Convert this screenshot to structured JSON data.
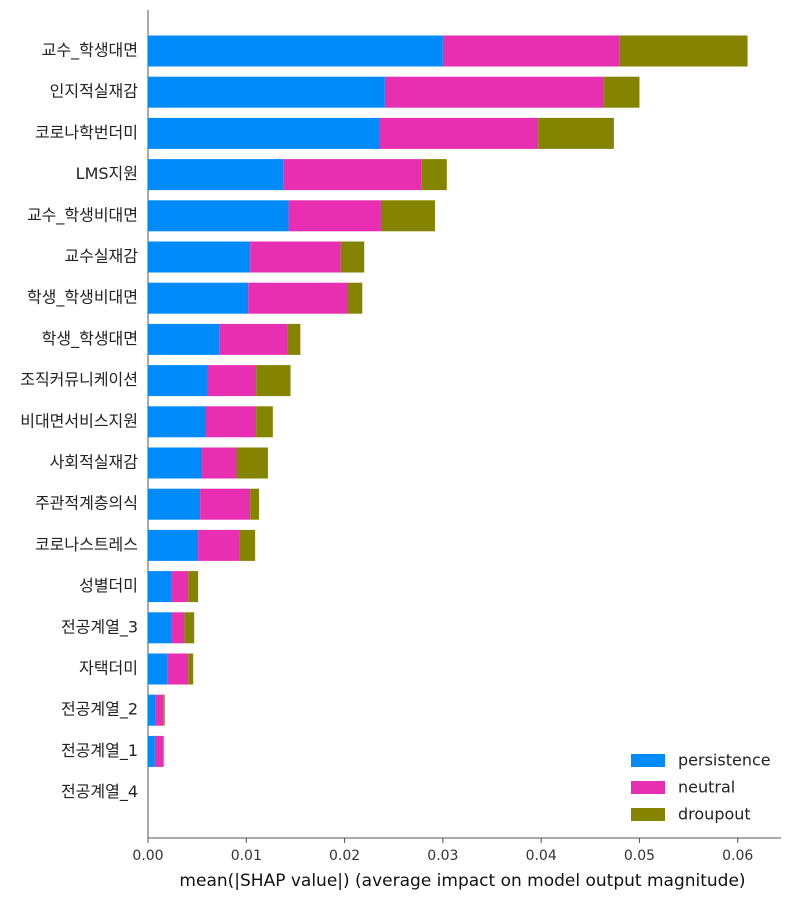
{
  "chart_data": {
    "type": "bar",
    "orientation": "horizontal",
    "stacked": true,
    "categories": [
      "교수_학생대면",
      "인지적실재감",
      "코로나학번더미",
      "LMS지원",
      "교수_학생비대면",
      "교수실재감",
      "학생_학생비대면",
      "학생_학생대면",
      "조직커뮤니케이션",
      "비대면서비스지원",
      "사회적실재감",
      "주관적계층의식",
      "코로나스트레스",
      "성별더미",
      "전공계열_3",
      "자택더미",
      "전공계열_2",
      "전공계열_1",
      "전공계열_4"
    ],
    "series": [
      {
        "name": "persistence",
        "color": "#008bfb",
        "values": [
          0.03,
          0.0241,
          0.0236,
          0.0138,
          0.0143,
          0.0104,
          0.0102,
          0.0073,
          0.006,
          0.0059,
          0.0055,
          0.0053,
          0.0051,
          0.0024,
          0.0024,
          0.002,
          0.0008,
          0.0007,
          0.0
        ]
      },
      {
        "name": "neutral",
        "color": "#e92fb1",
        "values": [
          0.018,
          0.0222,
          0.0161,
          0.014,
          0.0094,
          0.0092,
          0.0101,
          0.0069,
          0.005,
          0.0051,
          0.0035,
          0.0051,
          0.0042,
          0.0017,
          0.0013,
          0.0021,
          0.0008,
          0.0009,
          0.0
        ]
      },
      {
        "name": "droupout",
        "color": "#848400",
        "values": [
          0.013,
          0.0037,
          0.0077,
          0.0026,
          0.0055,
          0.0024,
          0.0015,
          0.0013,
          0.0035,
          0.0017,
          0.0032,
          0.0009,
          0.0016,
          0.001,
          0.001,
          0.0005,
          0.0001,
          0.0,
          0.0
        ]
      }
    ],
    "x_ticks": [
      "0.00",
      "0.01",
      "0.02",
      "0.03",
      "0.04",
      "0.05",
      "0.06"
    ],
    "xlim": [
      0,
      0.0644
    ],
    "xlabel": "mean(|SHAP value|) (average impact on model output magnitude)",
    "ylabel": "",
    "title": "",
    "legend_position": "bottom-right",
    "grid": false
  }
}
